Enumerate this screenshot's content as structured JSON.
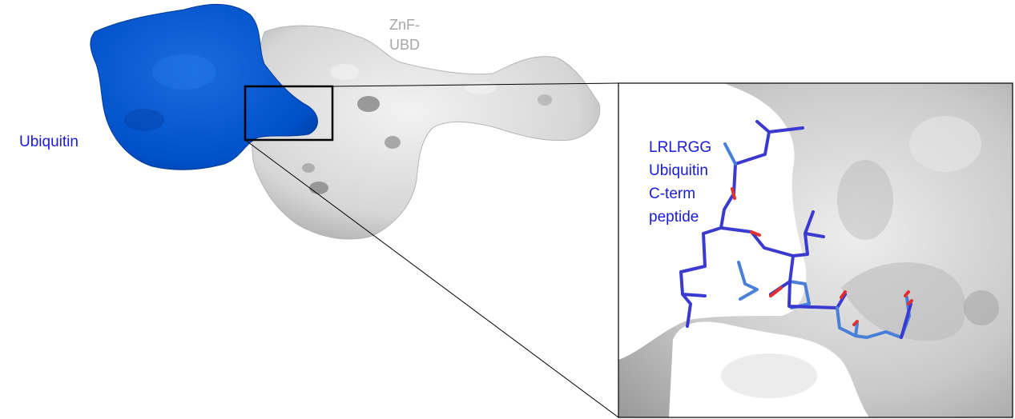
{
  "labels": {
    "ubiquitin": "Ubiquitin",
    "znf_line1": "ZnF-",
    "znf_line2": "UBD",
    "peptide_line1": "LRLRGG",
    "peptide_line2": "Ubiquitin",
    "peptide_line3": "C-term",
    "peptide_line4": "peptide"
  },
  "colors": {
    "ubiquitin": "#0050c8",
    "ubiquitin_text": "#1a1adc",
    "protein_surface": "#d9d9d9",
    "znf_text": "#a6a6a6",
    "peptide_text": "#1a1adc",
    "peptide_stick": "#3a3ad0",
    "oxygen": "#e03030",
    "zoom_frame": "#000000"
  }
}
